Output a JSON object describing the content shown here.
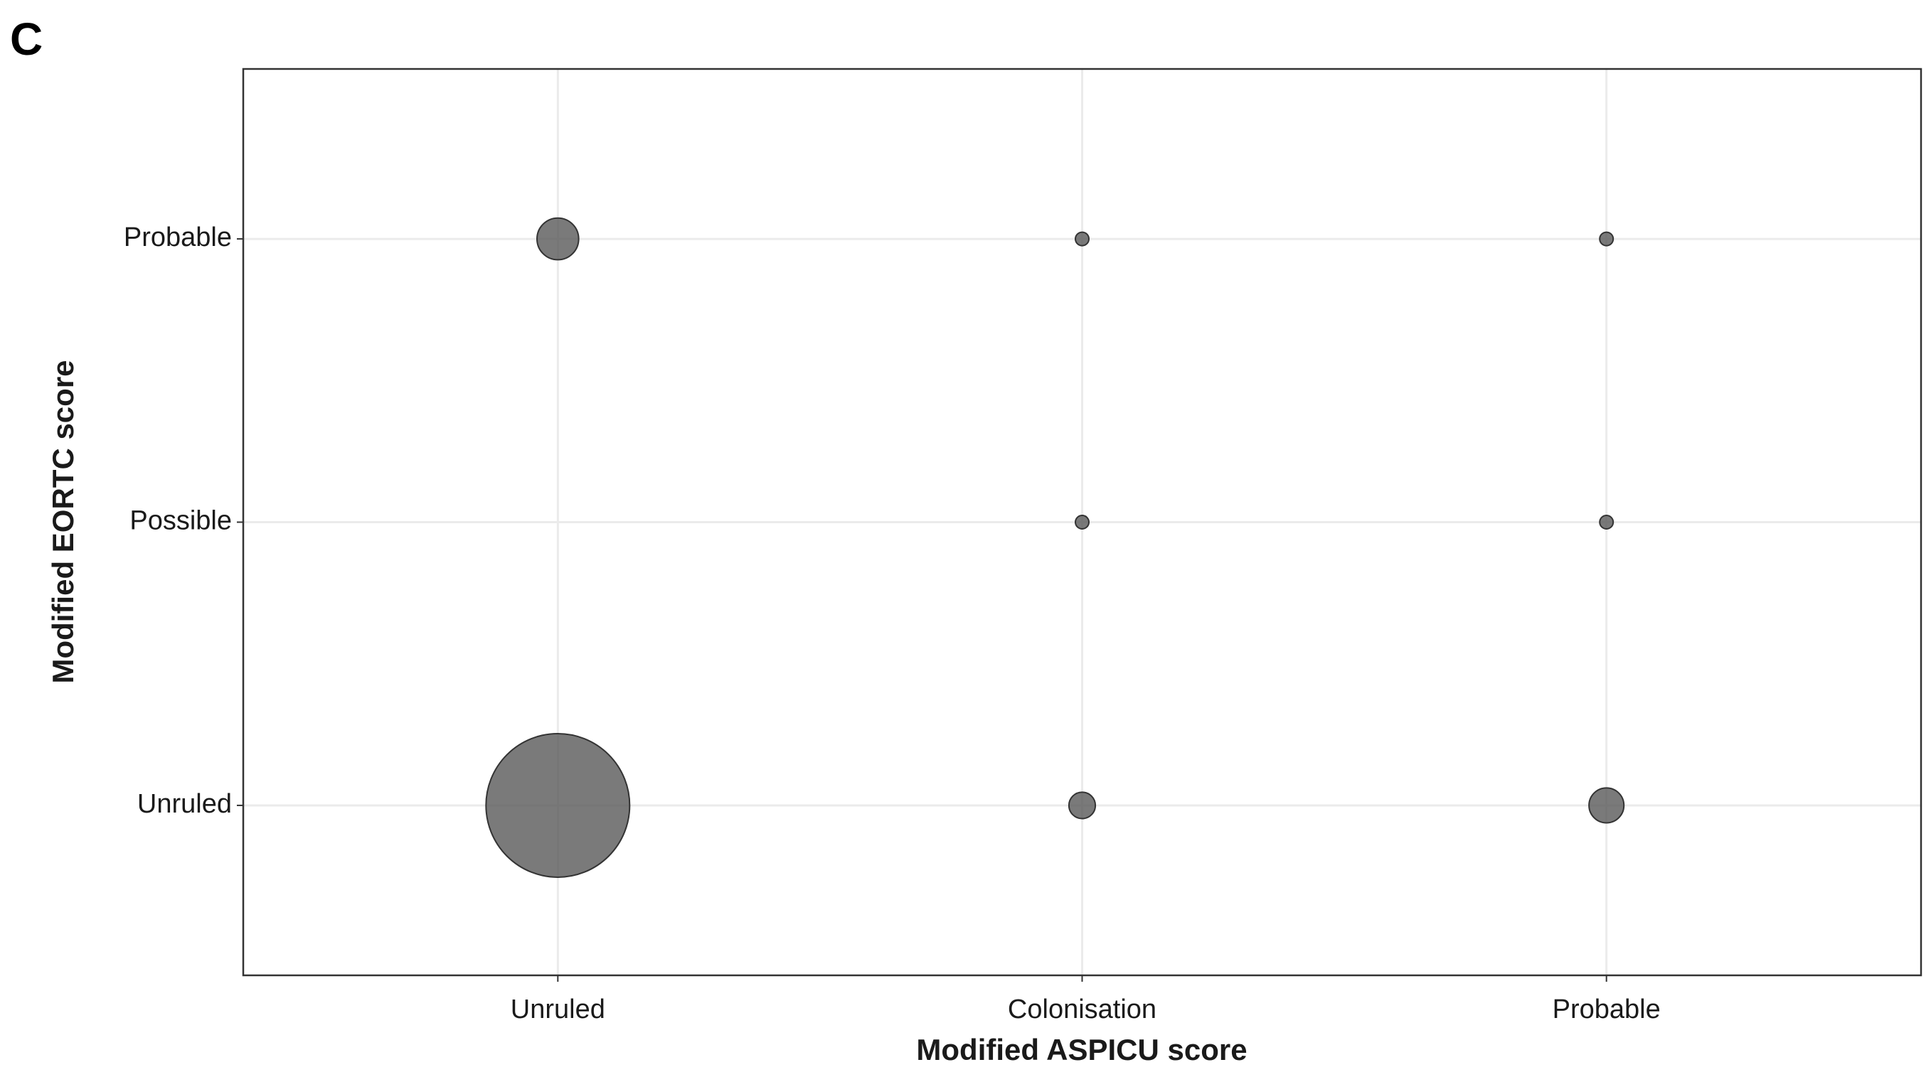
{
  "label": "C",
  "chart_data": {
    "type": "bubble",
    "x_label": "Modified ASPICU score",
    "y_label": "Modified EORTC score",
    "x_categories": [
      "Unruled",
      "Colonisation",
      "Probable"
    ],
    "y_categories": [
      "Unruled",
      "Possible",
      "Probable"
    ],
    "color": "#555555",
    "grid": true,
    "points": {
      "x": [
        "Unruled",
        "Unruled",
        "Colonisation",
        "Colonisation",
        "Colonisation",
        "Probable",
        "Probable",
        "Probable"
      ],
      "y": [
        "Probable",
        "Unruled",
        "Probable",
        "Possible",
        "Unruled",
        "Probable",
        "Possible",
        "Unruled"
      ],
      "sizes": [
        7,
        80,
        1,
        1,
        3,
        1,
        1,
        5
      ]
    }
  }
}
